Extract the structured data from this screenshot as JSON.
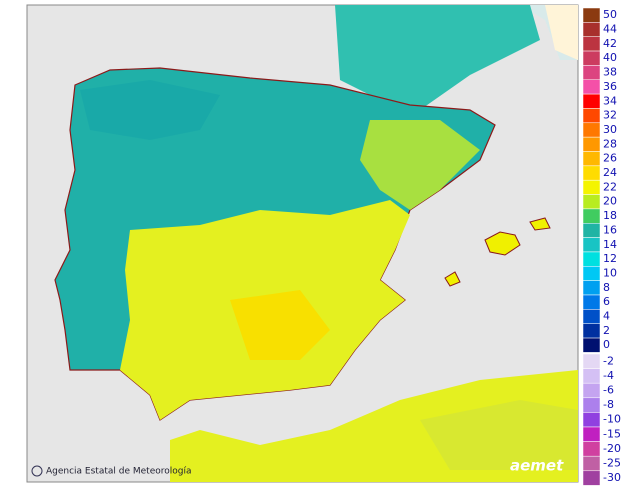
{
  "map": {
    "credit": "Agencia Estatal de Meteorología",
    "logo": "aemet",
    "legend": [
      {
        "label": "50",
        "color": "#8b3a10"
      },
      {
        "label": "44",
        "color": "#a8302c"
      },
      {
        "label": "42",
        "color": "#bc3440"
      },
      {
        "label": "40",
        "color": "#cc3c60"
      },
      {
        "label": "38",
        "color": "#dc4480"
      },
      {
        "label": "36",
        "color": "#f450a8"
      },
      {
        "label": "34",
        "color": "#ff0000"
      },
      {
        "label": "32",
        "color": "#ff4800"
      },
      {
        "label": "30",
        "color": "#ff7800"
      },
      {
        "label": "28",
        "color": "#ff9800"
      },
      {
        "label": "26",
        "color": "#ffb800"
      },
      {
        "label": "24",
        "color": "#ffdc00"
      },
      {
        "label": "22",
        "color": "#f4f400"
      },
      {
        "label": "20",
        "color": "#b8ec20"
      },
      {
        "label": "18",
        "color": "#40cc60"
      },
      {
        "label": "16",
        "color": "#20b4a4"
      },
      {
        "label": "14",
        "color": "#18c4c4"
      },
      {
        "label": "12",
        "color": "#00e0e0"
      },
      {
        "label": "10",
        "color": "#00c8f4"
      },
      {
        "label": "8",
        "color": "#00a0f0"
      },
      {
        "label": "6",
        "color": "#0078e8"
      },
      {
        "label": "4",
        "color": "#0050c8"
      },
      {
        "label": "2",
        "color": "#0030a0"
      },
      {
        "label": "0",
        "color": "#001070"
      },
      {
        "label": "-2",
        "color": "#e4d8f4"
      },
      {
        "label": "-4",
        "color": "#d4c0f4"
      },
      {
        "label": "-6",
        "color": "#c4a4f0"
      },
      {
        "label": "-8",
        "color": "#ac80ec"
      },
      {
        "label": "-10",
        "color": "#9040e0"
      },
      {
        "label": "-15",
        "color": "#c020c0"
      },
      {
        "label": "-20",
        "color": "#d040a0"
      },
      {
        "label": "-25",
        "color": "#c060a4"
      },
      {
        "label": "-30",
        "color": "#a040a0"
      }
    ]
  }
}
